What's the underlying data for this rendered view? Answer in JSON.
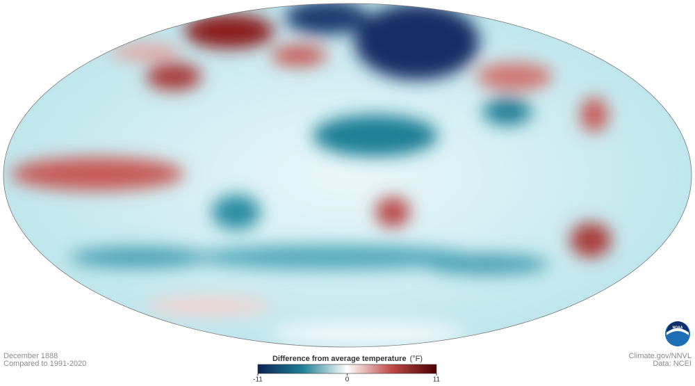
{
  "caption": {
    "date": "December 1888",
    "baseline": "Compared to 1991-2020"
  },
  "legend": {
    "title": "Difference from average temperature",
    "unit": "(°F)",
    "lim": [
      -11,
      11
    ],
    "ticks": [
      -11,
      0,
      11
    ],
    "colors": [
      "#0b2255",
      "#1f7f96",
      "#ffffff",
      "#bd4a48",
      "#4a0000"
    ]
  },
  "credits": {
    "source": "Climate.gov/NNVL",
    "data": "Data: NCEI"
  },
  "logo": "NOAA"
}
